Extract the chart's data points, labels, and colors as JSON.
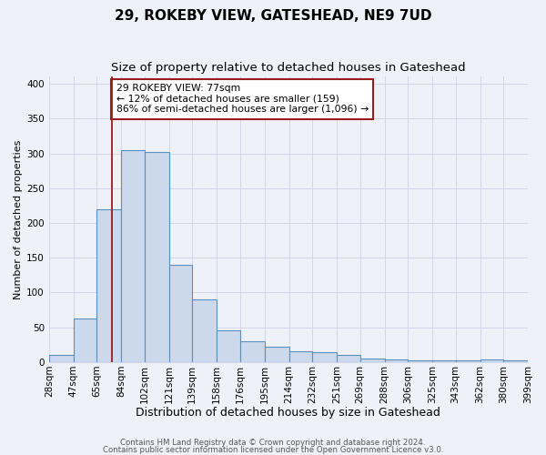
{
  "title": "29, ROKEBY VIEW, GATESHEAD, NE9 7UD",
  "subtitle": "Size of property relative to detached houses in Gateshead",
  "xlabel": "Distribution of detached houses by size in Gateshead",
  "ylabel": "Number of detached properties",
  "bin_labels": [
    "28sqm",
    "47sqm",
    "65sqm",
    "84sqm",
    "102sqm",
    "121sqm",
    "139sqm",
    "158sqm",
    "176sqm",
    "195sqm",
    "214sqm",
    "232sqm",
    "251sqm",
    "269sqm",
    "288sqm",
    "306sqm",
    "325sqm",
    "343sqm",
    "362sqm",
    "380sqm",
    "399sqm"
  ],
  "bin_edges": [
    28,
    47,
    65,
    84,
    102,
    121,
    139,
    158,
    176,
    195,
    214,
    232,
    251,
    269,
    288,
    306,
    325,
    343,
    362,
    380,
    399
  ],
  "bar_heights": [
    10,
    63,
    220,
    305,
    302,
    140,
    90,
    46,
    30,
    22,
    16,
    14,
    11,
    5,
    4,
    3,
    3,
    3,
    4,
    2
  ],
  "bar_color": "#ccd9ec",
  "bar_edge_color": "#5b8fc0",
  "vline_x": 77,
  "vline_color": "#9b1c1c",
  "annotation_text": "29 ROKEBY VIEW: 77sqm\n← 12% of detached houses are smaller (159)\n86% of semi-detached houses are larger (1,096) →",
  "annotation_box_color": "white",
  "annotation_box_edge": "#9b1c1c",
  "ylim": [
    0,
    410
  ],
  "footnote1": "Contains HM Land Registry data © Crown copyright and database right 2024.",
  "footnote2": "Contains public sector information licensed under the Open Government Licence v3.0.",
  "bg_color": "#eef2f8",
  "grid_color": "#d0d8e8",
  "title_fontsize": 11,
  "subtitle_fontsize": 9.5,
  "xlabel_fontsize": 9,
  "ylabel_fontsize": 8,
  "tick_fontsize": 7.5,
  "footnote_fontsize": 6.2
}
